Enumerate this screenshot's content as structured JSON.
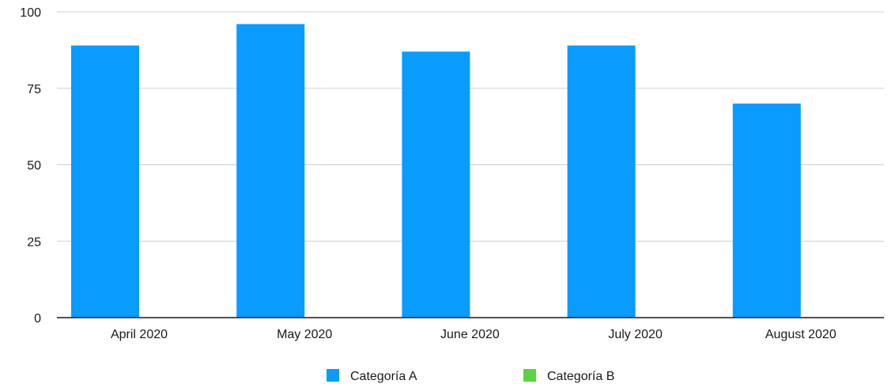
{
  "chart_data": {
    "type": "bar",
    "categories": [
      "April 2020",
      "May 2020",
      "June 2020",
      "July 2020",
      "August 2020"
    ],
    "series": [
      {
        "name": "Categoría A",
        "color": "#0a9bff",
        "values": [
          89,
          96,
          87,
          89,
          70
        ]
      },
      {
        "name": "Categoría B",
        "color": "#5cd343",
        "values": [
          0,
          0,
          0,
          0,
          0
        ]
      }
    ],
    "ylim": [
      0,
      100
    ],
    "yticks": [
      "0",
      "25",
      "50",
      "75",
      "100"
    ],
    "grid": true,
    "legend_position": "bottom-center"
  }
}
